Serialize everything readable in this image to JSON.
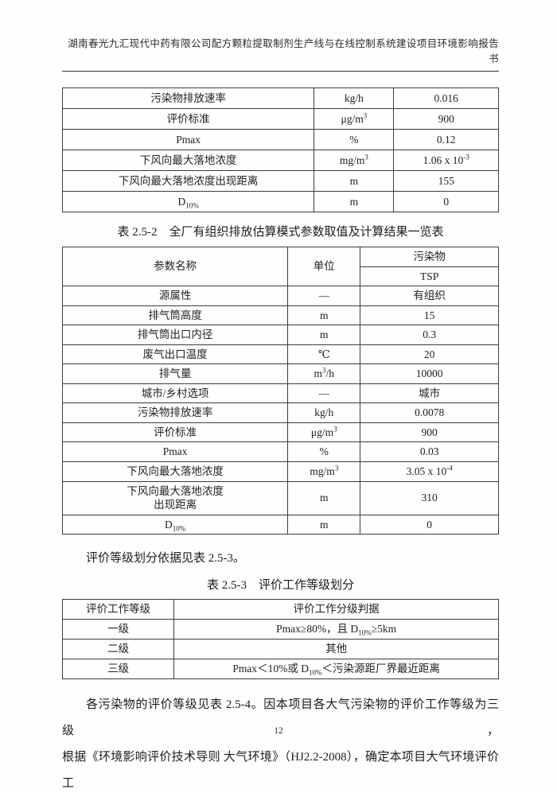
{
  "header": {
    "title": "湖南春光九汇现代中药有限公司配方颗粒提取制剂生产线与在线控制系统建设项目环境影响报告书"
  },
  "captions": {
    "table_252": "表 2.5-2　全厂有组织排放估算模式参数取值及计算结果一览表",
    "table_253": "表 2.5-3　评价工作等级划分"
  },
  "paragraphs": {
    "intro_253": "评价等级划分依据见表 2.5-3。",
    "closing_line1": "各污染物的评价等级见表 2.5-4。因本项目各大气污染物的评价工作等级为三级，",
    "closing_line2": "根据《环境影响评价技术导则 大气环境》（HJ2.2-2008），确定本项目大气环境评价工"
  },
  "footer": {
    "page_number": "12"
  },
  "tables": {
    "continued_estimation": {
      "cols": [
        "57.7%",
        "18.3%",
        "24%"
      ],
      "rows": [
        [
          {
            "t": "污染物排放速率"
          },
          {
            "t": "kg/h"
          },
          {
            "t": "0.016"
          }
        ],
        [
          {
            "t": "评价标准"
          },
          {
            "t": "μg/m^{3}"
          },
          {
            "t": "900"
          }
        ],
        [
          {
            "t": "Pmax"
          },
          {
            "t": "%"
          },
          {
            "t": "0.12"
          }
        ],
        [
          {
            "t": "下风向最大落地浓度"
          },
          {
            "t": "mg/m^{3}"
          },
          {
            "t": "1.06 x 10^{-3}"
          }
        ],
        [
          {
            "t": "下风向最大落地浓度出现距离"
          },
          {
            "t": "m"
          },
          {
            "t": "155"
          }
        ],
        [
          {
            "t": "D_{10%}"
          },
          {
            "t": "m"
          },
          {
            "t": "0"
          }
        ]
      ]
    },
    "estimation_252": {
      "cols": [
        "51.7%",
        "16.6%",
        "31.7%"
      ],
      "rows": [
        [
          {
            "t": "参数名称",
            "rs": 2
          },
          {
            "t": "单位",
            "rs": 2
          },
          {
            "t": "污染物"
          }
        ],
        [
          {
            "t": "TSP"
          }
        ],
        [
          {
            "t": "源属性"
          },
          {
            "t": "—"
          },
          {
            "t": "有组织"
          }
        ],
        [
          {
            "t": "排气筒高度"
          },
          {
            "t": "m"
          },
          {
            "t": "15"
          }
        ],
        [
          {
            "t": "排气筒出口内径"
          },
          {
            "t": "m"
          },
          {
            "t": "0.3"
          }
        ],
        [
          {
            "t": "废气出口温度"
          },
          {
            "t": "℃"
          },
          {
            "t": "20"
          }
        ],
        [
          {
            "t": "排气量"
          },
          {
            "t": "m^{3}/h"
          },
          {
            "t": "10000"
          }
        ],
        [
          {
            "t": "城市/乡村选项"
          },
          {
            "t": "—"
          },
          {
            "t": "城市"
          }
        ],
        [
          {
            "t": "污染物排放速率"
          },
          {
            "t": "kg/h"
          },
          {
            "t": "0.0078"
          }
        ],
        [
          {
            "t": "评价标准"
          },
          {
            "t": "μg/m^{3}"
          },
          {
            "t": "900"
          }
        ],
        [
          {
            "t": "Pmax"
          },
          {
            "t": "%"
          },
          {
            "t": "0.03"
          }
        ],
        [
          {
            "t": "下风向最大落地浓度"
          },
          {
            "t": "mg/m^{3}"
          },
          {
            "t": "3.05 x 10^{-4}"
          }
        ],
        [
          {
            "t": "下风向最大落地浓度\n出现距离"
          },
          {
            "t": "m"
          },
          {
            "t": "310"
          }
        ],
        [
          {
            "t": "D_{10%}"
          },
          {
            "t": "m"
          },
          {
            "t": "0"
          }
        ]
      ]
    },
    "grading_253": {
      "cols": [
        "25.6%",
        "74.4%"
      ],
      "rows": [
        [
          {
            "t": "评价工作等级"
          },
          {
            "t": "评价工作分级判据"
          }
        ],
        [
          {
            "t": "一级"
          },
          {
            "t": "Pmax≥80%，且 D_{10%}≥5km"
          }
        ],
        [
          {
            "t": "二级"
          },
          {
            "t": "其他"
          }
        ],
        [
          {
            "t": "三级"
          },
          {
            "t": "Pmax＜10%或 D_{10%}＜污染源距厂界最近距离"
          }
        ]
      ]
    }
  }
}
